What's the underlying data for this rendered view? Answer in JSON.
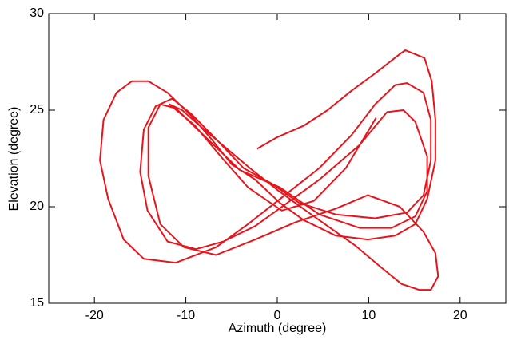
{
  "chart_data": {
    "type": "line",
    "xlabel": "Azimuth (degree)",
    "ylabel": "Elevation (degree)",
    "xlim": [
      -25,
      25
    ],
    "xticks": [
      -20,
      -10,
      0,
      10,
      20
    ],
    "ylim": [
      15,
      30
    ],
    "yticks": [
      15,
      20,
      25,
      30
    ],
    "series": [
      {
        "color": "#e8141c",
        "x": [
          -2.2,
          0,
          2.9,
          5.5,
          8.1,
          10.7,
          13.4,
          14.0,
          16.1,
          16.9,
          17.3,
          17.3,
          16.4,
          15.1,
          12.9,
          9.9,
          6.4,
          2.9,
          0.3,
          -2.4,
          -5.0,
          -7.2,
          -9.4,
          -12.0,
          -14.1,
          -15.9,
          -17.6,
          -19.0,
          -19.4,
          -18.5,
          -16.8,
          -14.6,
          -11.1,
          -6.7,
          -3.2,
          0.3,
          4.6,
          8.1,
          10.7,
          12.9,
          14.2,
          16.0,
          16.8,
          16.8,
          16.0,
          14.2,
          10.7,
          6.4,
          2.4,
          -0.6,
          -3.7,
          -6.7,
          -9.4,
          -11.5,
          -13.3,
          -14.6,
          -15.0,
          -14.2,
          -12.0,
          -8.9,
          -5.9,
          -2.4,
          1.1,
          4.6,
          9.0,
          12.0,
          13.8,
          15.1,
          16.4,
          16.4,
          15.1,
          12.5,
          9.0,
          4.6,
          0.3,
          -4.1,
          -8.5,
          -11.1,
          -12.8,
          -14.1,
          -14.1,
          -12.8,
          -10.2,
          -6.7,
          -2.4,
          2.0,
          6.4,
          9.9,
          13.4,
          16.0,
          17.3,
          17.6,
          16.8,
          15.5,
          13.6,
          11.5,
          8.5,
          4.0,
          0.2,
          -3.0,
          -6.0,
          -8.5,
          -10.4,
          -11.8,
          -9.0,
          -6.0,
          -3.2,
          0.5,
          4.0,
          7.5,
          10.8
        ],
        "y": [
          23.0,
          23.6,
          24.2,
          25.0,
          26.0,
          26.9,
          27.9,
          28.1,
          27.7,
          26.5,
          24.5,
          22.4,
          20.4,
          19.1,
          18.5,
          18.3,
          18.5,
          19.3,
          20.2,
          21.4,
          22.2,
          23.5,
          24.7,
          25.9,
          26.5,
          26.5,
          25.9,
          24.5,
          22.4,
          20.4,
          18.3,
          17.3,
          17.1,
          17.9,
          19.1,
          20.4,
          22.0,
          23.7,
          25.3,
          26.3,
          26.4,
          25.9,
          24.5,
          22.4,
          20.6,
          19.7,
          19.4,
          19.6,
          20.2,
          21.2,
          22.0,
          23.5,
          24.8,
          25.6,
          25.2,
          24.0,
          21.8,
          19.8,
          18.2,
          17.8,
          18.2,
          19.0,
          20.2,
          21.4,
          23.2,
          24.9,
          25.0,
          24.4,
          22.6,
          20.8,
          19.5,
          18.9,
          18.9,
          19.6,
          21.0,
          21.9,
          23.9,
          25.1,
          25.3,
          24.1,
          21.6,
          19.1,
          17.9,
          17.5,
          18.3,
          19.2,
          19.9,
          20.6,
          20.0,
          18.7,
          17.6,
          16.4,
          15.7,
          15.7,
          16.0,
          16.8,
          18.0,
          19.5,
          20.8,
          22.0,
          23.2,
          24.2,
          25.0,
          25.3,
          24.2,
          22.5,
          21.0,
          19.8,
          20.3,
          22.0,
          24.6
        ]
      }
    ]
  }
}
